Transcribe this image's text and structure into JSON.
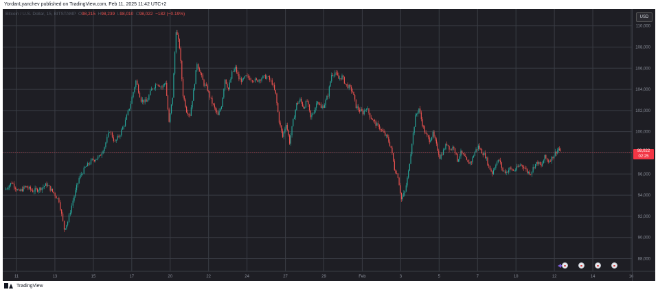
{
  "caption": "YordanLyanchev published on TradingView.com, Feb 11, 2025 11:42 UTC+2",
  "symbol_line": {
    "symbol": "Bitcoin / U.S. Dollar, 15, BITSTAMP",
    "open_label": "O",
    "open": "98,215",
    "high_label": "H",
    "high": "98,239",
    "low_label": "L",
    "low": "98,010",
    "close_label": "C",
    "close": "98,022",
    "change": "−182 (−0.19%)"
  },
  "currency_button": "USD",
  "last_price": {
    "price": "98,022",
    "countdown": "02:25"
  },
  "footer": "TradingView",
  "colors": {
    "background": "#1e1e24",
    "grid": "#3a3d45",
    "up": "#26a69a",
    "down": "#ef5350",
    "accent": "#f23645"
  },
  "chart_data": {
    "type": "candlestick",
    "title": "Bitcoin / U.S. Dollar, 15, BITSTAMP",
    "ylim": [
      86800,
      111600
    ],
    "y_ticks": [
      88000,
      90000,
      92000,
      94000,
      96000,
      98000,
      100000,
      102000,
      104000,
      106000,
      108000,
      110000
    ],
    "y_tick_labels": [
      "88,000",
      "90,000",
      "92,000",
      "94,000",
      "96,000",
      "98,000",
      "100,000",
      "102,000",
      "104,000",
      "106,000",
      "108,000",
      "110,000"
    ],
    "x_tick_labels": [
      "11",
      "13",
      "15",
      "17",
      "20",
      "22",
      "24",
      "27",
      "29",
      "Feb",
      "3",
      "5",
      "7",
      "10",
      "12",
      "14",
      "16"
    ],
    "grid": true,
    "price_path": [
      [
        0,
        94500
      ],
      [
        0.8,
        95200
      ],
      [
        1.6,
        94300
      ],
      [
        2.4,
        94800
      ],
      [
        3.2,
        94400
      ],
      [
        4.0,
        94600
      ],
      [
        4.8,
        95000
      ],
      [
        5.6,
        94200
      ],
      [
        6.2,
        93500
      ],
      [
        6.8,
        90800
      ],
      [
        7.2,
        91500
      ],
      [
        7.8,
        93500
      ],
      [
        8.5,
        95600
      ],
      [
        9.2,
        96600
      ],
      [
        10.0,
        97300
      ],
      [
        10.8,
        97600
      ],
      [
        11.4,
        98600
      ],
      [
        12.0,
        100100
      ],
      [
        12.6,
        99000
      ],
      [
        13.2,
        99800
      ],
      [
        13.8,
        101000
      ],
      [
        14.4,
        102700
      ],
      [
        15.0,
        104800
      ],
      [
        15.6,
        103000
      ],
      [
        16.2,
        102800
      ],
      [
        16.8,
        104000
      ],
      [
        17.4,
        104600
      ],
      [
        18.0,
        104200
      ],
      [
        18.4,
        104700
      ],
      [
        18.8,
        100800
      ],
      [
        19.2,
        103300
      ],
      [
        19.6,
        109600
      ],
      [
        20.0,
        108000
      ],
      [
        20.4,
        103500
      ],
      [
        20.8,
        102000
      ],
      [
        21.2,
        101600
      ],
      [
        21.6,
        103800
      ],
      [
        22.0,
        106500
      ],
      [
        22.4,
        105500
      ],
      [
        22.8,
        104500
      ],
      [
        23.2,
        104000
      ],
      [
        23.6,
        103000
      ],
      [
        24.0,
        102200
      ],
      [
        24.4,
        101500
      ],
      [
        24.8,
        102500
      ],
      [
        25.2,
        105000
      ],
      [
        25.6,
        104000
      ],
      [
        26.0,
        105500
      ],
      [
        26.4,
        106000
      ],
      [
        26.8,
        105000
      ],
      [
        27.2,
        104800
      ],
      [
        27.6,
        105200
      ],
      [
        28.2,
        105000
      ],
      [
        28.8,
        104800
      ],
      [
        29.4,
        105100
      ],
      [
        30.0,
        105200
      ],
      [
        30.6,
        104600
      ],
      [
        31.0,
        103500
      ],
      [
        31.4,
        101000
      ],
      [
        31.8,
        99500
      ],
      [
        32.2,
        100800
      ],
      [
        32.6,
        99000
      ],
      [
        33.0,
        101000
      ],
      [
        33.4,
        102600
      ],
      [
        33.8,
        103000
      ],
      [
        34.2,
        102300
      ],
      [
        34.6,
        102900
      ],
      [
        35.0,
        101300
      ],
      [
        35.4,
        102000
      ],
      [
        35.8,
        103000
      ],
      [
        36.2,
        102200
      ],
      [
        36.6,
        102600
      ],
      [
        37.0,
        103500
      ],
      [
        37.4,
        105400
      ],
      [
        37.8,
        105600
      ],
      [
        38.2,
        105000
      ],
      [
        38.6,
        105200
      ],
      [
        39.0,
        104500
      ],
      [
        39.4,
        104200
      ],
      [
        39.8,
        103800
      ],
      [
        40.2,
        102400
      ],
      [
        40.6,
        102000
      ],
      [
        41.0,
        101800
      ],
      [
        41.4,
        102300
      ],
      [
        41.8,
        101500
      ],
      [
        42.2,
        101000
      ],
      [
        42.6,
        100600
      ],
      [
        43.0,
        100300
      ],
      [
        43.4,
        99800
      ],
      [
        43.8,
        99400
      ],
      [
        44.2,
        98500
      ],
      [
        44.6,
        96500
      ],
      [
        45.0,
        95800
      ],
      [
        45.4,
        93600
      ],
      [
        45.8,
        94300
      ],
      [
        46.2,
        96200
      ],
      [
        46.6,
        99000
      ],
      [
        47.0,
        101400
      ],
      [
        47.4,
        102200
      ],
      [
        47.8,
        100700
      ],
      [
        48.2,
        99700
      ],
      [
        48.6,
        99200
      ],
      [
        49.0,
        99800
      ],
      [
        49.4,
        98700
      ],
      [
        49.8,
        97600
      ],
      [
        50.2,
        98200
      ],
      [
        50.6,
        98900
      ],
      [
        51.0,
        98300
      ],
      [
        51.4,
        98600
      ],
      [
        51.8,
        97300
      ],
      [
        52.2,
        98000
      ],
      [
        52.6,
        97600
      ],
      [
        53.0,
        97000
      ],
      [
        53.4,
        97200
      ],
      [
        53.8,
        98100
      ],
      [
        54.2,
        98600
      ],
      [
        54.6,
        98100
      ],
      [
        55.0,
        97700
      ],
      [
        55.4,
        96700
      ],
      [
        55.8,
        96100
      ],
      [
        56.2,
        97000
      ],
      [
        56.6,
        97300
      ],
      [
        57.0,
        96300
      ],
      [
        57.4,
        96200
      ],
      [
        57.8,
        96500
      ],
      [
        58.2,
        96300
      ],
      [
        58.6,
        96500
      ],
      [
        59.0,
        96900
      ],
      [
        59.4,
        96700
      ],
      [
        59.8,
        96200
      ],
      [
        60.2,
        96100
      ],
      [
        60.6,
        96800
      ],
      [
        61.0,
        97100
      ],
      [
        61.4,
        96700
      ],
      [
        61.8,
        97600
      ],
      [
        62.2,
        97200
      ],
      [
        62.6,
        97500
      ],
      [
        63.0,
        98000
      ],
      [
        63.4,
        98400
      ],
      [
        63.6,
        98022
      ]
    ]
  },
  "events": [
    "event-marker",
    "event-marker",
    "event-marker",
    "event-marker"
  ]
}
